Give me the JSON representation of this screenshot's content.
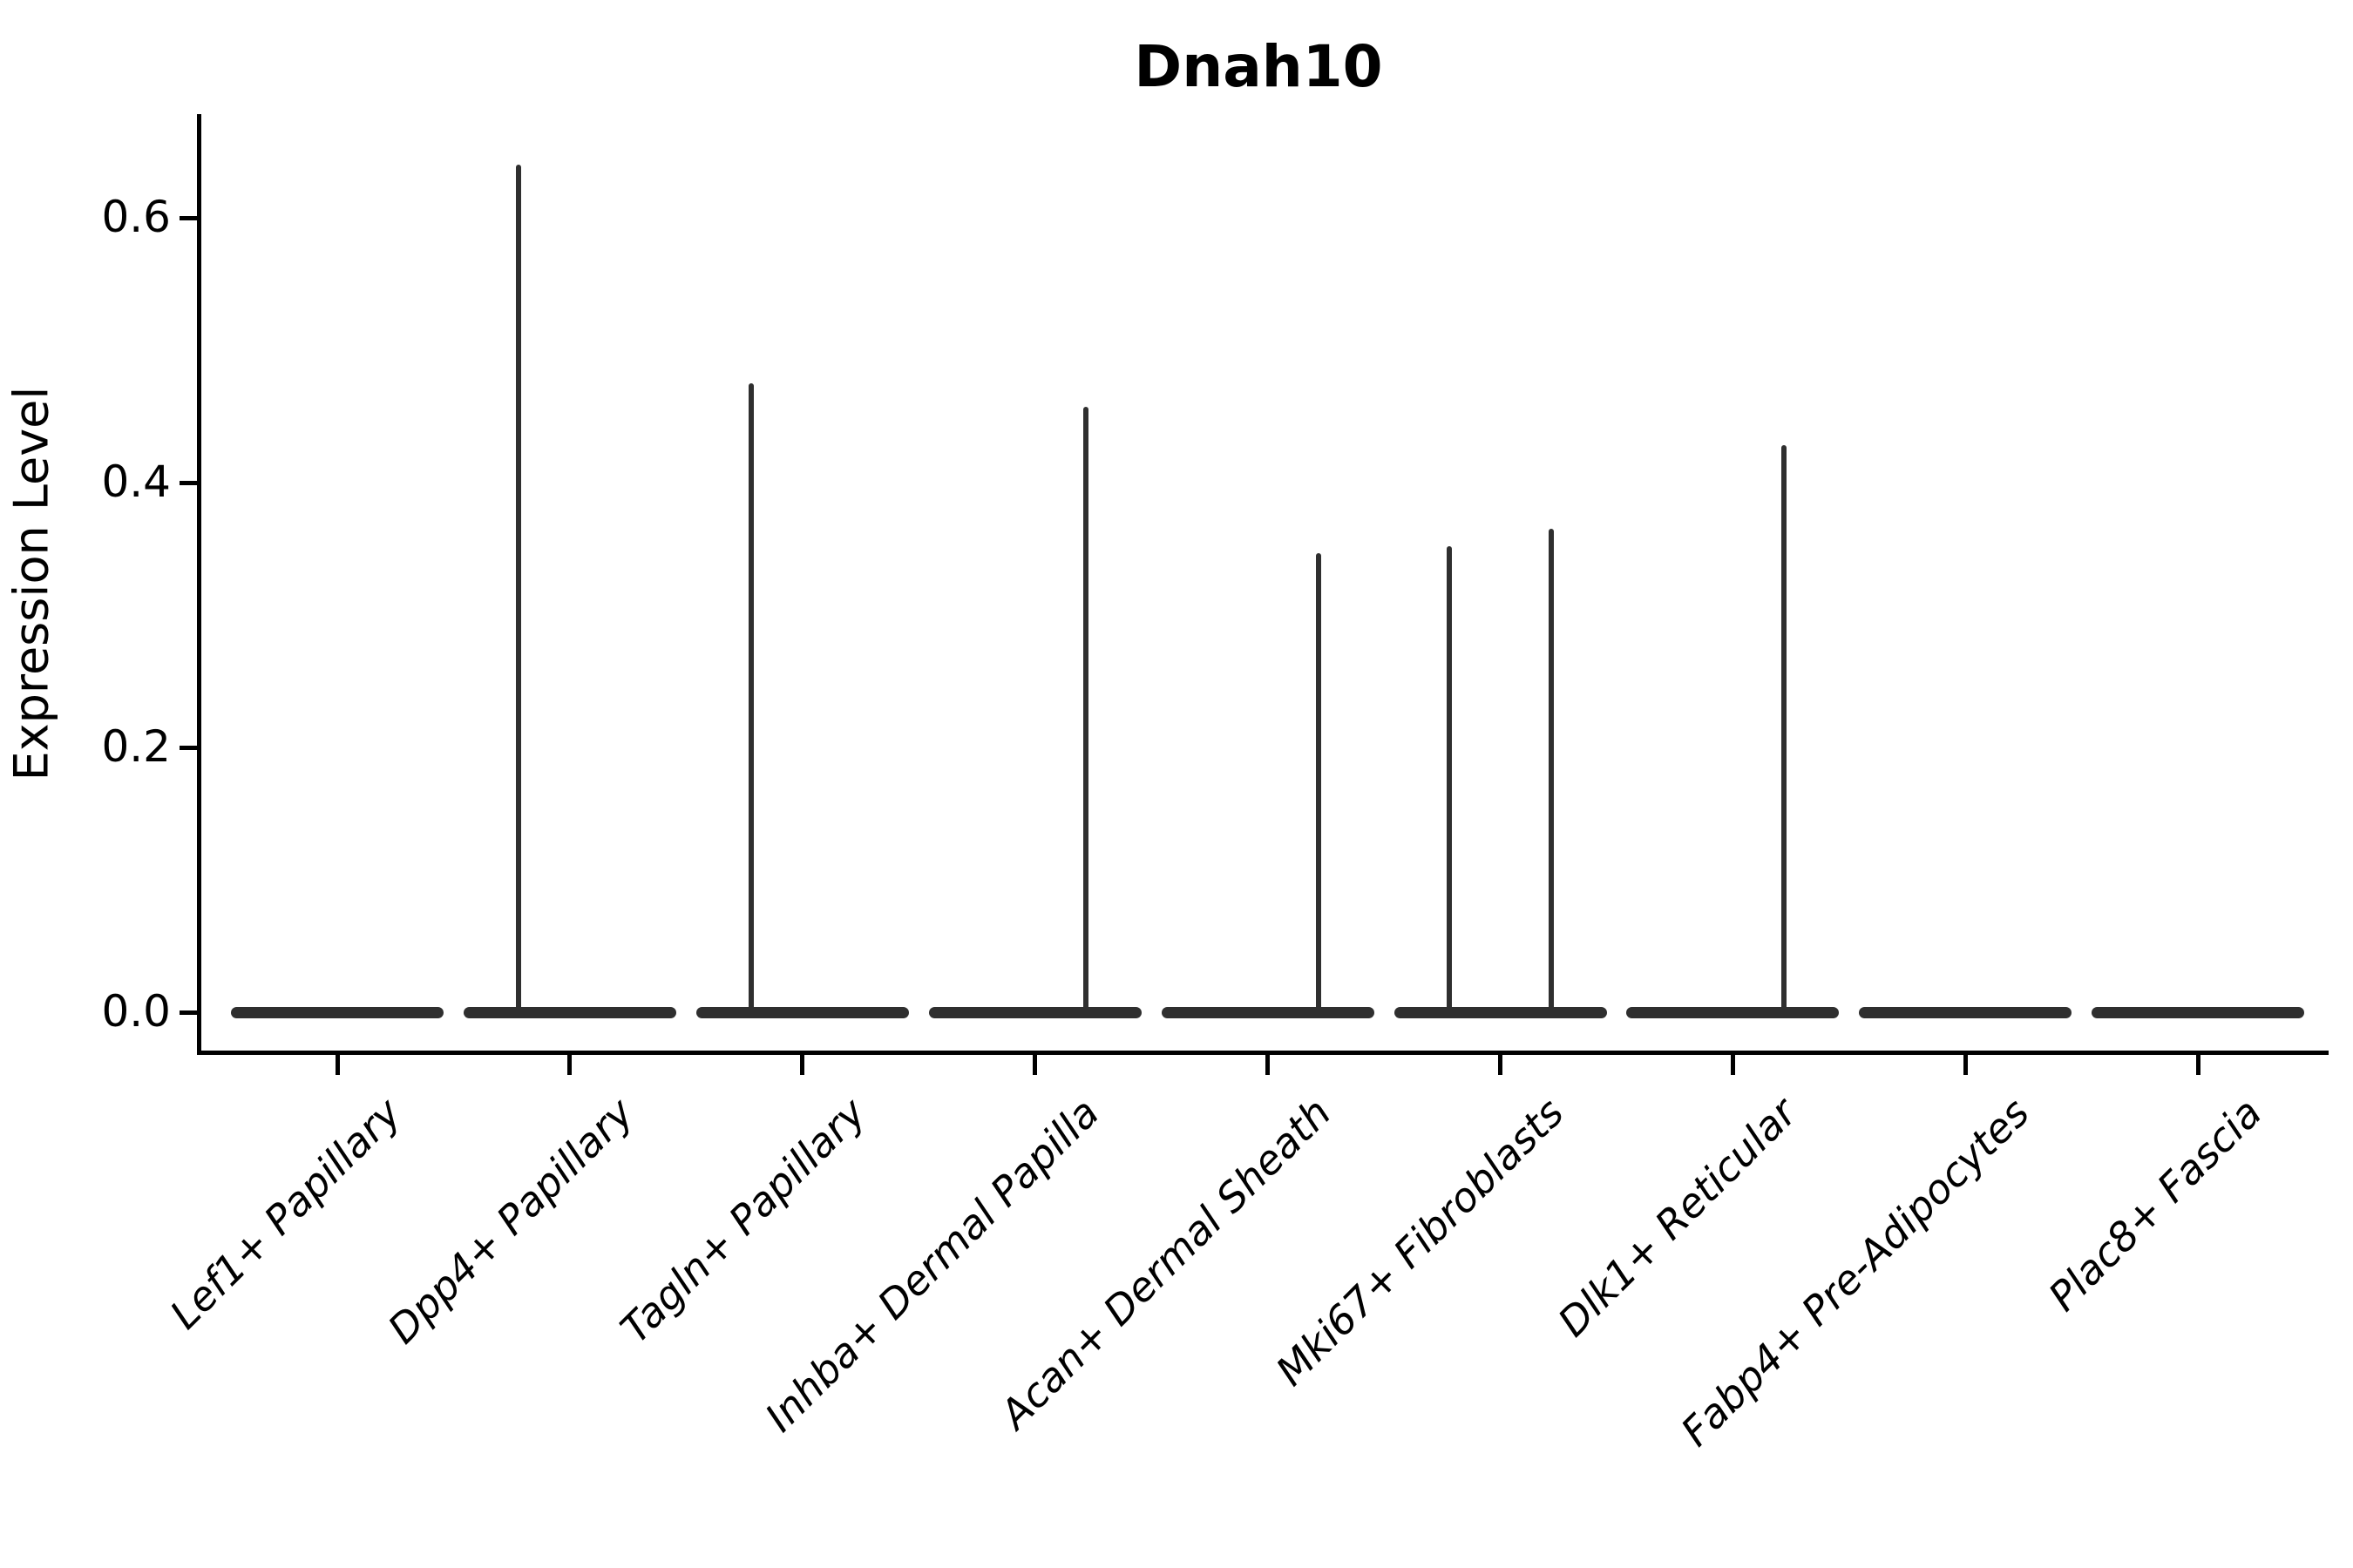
{
  "chart_data": {
    "type": "violin",
    "title": "Dnah10",
    "ylabel": "Expression Level",
    "xlabel": "",
    "grid": false,
    "legend": null,
    "ylim": [
      0,
      0.68
    ],
    "ytick_labels": [
      "0.0",
      "0.2",
      "0.4",
      "0.6"
    ],
    "ytick_values": [
      0.0,
      0.2,
      0.4,
      0.6
    ],
    "categories": [
      "Lef1+ Papillary",
      "Dpp4+ Papillary",
      "Tagln+ Papillary",
      "Inhba+ Dermal Papilla",
      "Acan+ Dermal Sheath",
      "Mki67+ Fibroblasts",
      "Dlk1+ Reticular",
      "Fabp4+ Pre-Adipocytes",
      "Plac8+ Fascia"
    ],
    "violins": [
      {
        "category": "Lef1+ Papillary",
        "baseline_value": 0.0,
        "spikes": []
      },
      {
        "category": "Dpp4+ Papillary",
        "baseline_value": 0.0,
        "spikes": [
          {
            "offset_frac": -0.22,
            "max": 0.64
          }
        ]
      },
      {
        "category": "Tagln+ Papillary",
        "baseline_value": 0.0,
        "spikes": [
          {
            "offset_frac": -0.22,
            "max": 0.475
          }
        ]
      },
      {
        "category": "Inhba+ Dermal Papilla",
        "baseline_value": 0.0,
        "spikes": [
          {
            "offset_frac": 0.22,
            "max": 0.457
          }
        ]
      },
      {
        "category": "Acan+ Dermal Sheath",
        "baseline_value": 0.0,
        "spikes": [
          {
            "offset_frac": 0.22,
            "max": 0.347
          }
        ]
      },
      {
        "category": "Mki67+ Fibroblasts",
        "baseline_value": 0.0,
        "spikes": [
          {
            "offset_frac": -0.22,
            "max": 0.352
          },
          {
            "offset_frac": 0.22,
            "max": 0.365
          }
        ]
      },
      {
        "category": "Dlk1+ Reticular",
        "baseline_value": 0.0,
        "spikes": [
          {
            "offset_frac": 0.22,
            "max": 0.428
          }
        ]
      },
      {
        "category": "Fabp4+ Pre-Adipocytes",
        "baseline_value": 0.0,
        "spikes": []
      },
      {
        "category": "Plac8+ Fascia",
        "baseline_value": 0.0,
        "spikes": []
      }
    ],
    "colors": {
      "ink": "#000000",
      "violin": "#2f2f2f",
      "background": "#ffffff"
    }
  }
}
